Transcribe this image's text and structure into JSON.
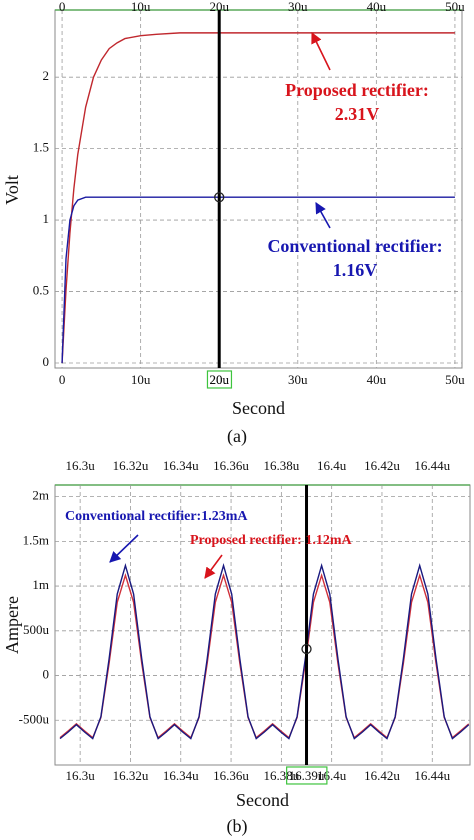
{
  "chart_data": [
    {
      "type": "line",
      "caption": "(a)",
      "xlabel": "Second",
      "ylabel": "Volt",
      "x": [
        0,
        0.5,
        1,
        1.5,
        2,
        3,
        4,
        5,
        6,
        7,
        8,
        10,
        12,
        15,
        20,
        30,
        40,
        50
      ],
      "series": [
        {
          "name": "Proposed rectifier",
          "color": "#c0282e",
          "values": [
            0,
            0.51,
            0.91,
            1.22,
            1.46,
            1.79,
            2.0,
            2.12,
            2.2,
            2.24,
            2.27,
            2.29,
            2.3,
            2.31,
            2.31,
            2.31,
            2.31,
            2.31
          ]
        },
        {
          "name": "Conventional rectifier",
          "color": "#1a1aa0",
          "values": [
            0,
            0.73,
            1.0,
            1.1,
            1.14,
            1.16,
            1.16,
            1.16,
            1.16,
            1.16,
            1.16,
            1.16,
            1.16,
            1.16,
            1.16,
            1.16,
            1.16,
            1.16
          ]
        }
      ],
      "xlim": [
        -0.9,
        50.9
      ],
      "ylim": [
        -0.035,
        2.47
      ],
      "xticks": [
        0,
        {
          "value": 10,
          "label": "10u"
        },
        {
          "value": 20,
          "label": "20u"
        },
        {
          "value": 30,
          "label": "30u"
        },
        {
          "value": 40,
          "label": "40u"
        },
        {
          "value": 50,
          "label": "50u"
        }
      ],
      "yticks": [
        0,
        0.5,
        1,
        1.5,
        2
      ],
      "grid": true,
      "cursor_x": 20,
      "cursor_label": "20u",
      "annotations": [
        {
          "lines": [
            "Proposed rectifier:",
            "2.31V"
          ],
          "color": "#d8141c"
        },
        {
          "lines": [
            "Conventional rectifier:",
            "1.16V"
          ],
          "color": "#1717b0"
        }
      ]
    },
    {
      "type": "line",
      "caption": "(b)",
      "xlabel": "Second",
      "ylabel": "Ampere",
      "x": [
        16.292,
        16.29525,
        16.2985,
        16.30175,
        16.305,
        16.30825,
        16.3115,
        16.31475,
        16.318,
        16.32125,
        16.3245,
        16.32775,
        16.331,
        16.33425,
        16.3375,
        16.34075,
        16.344,
        16.34725,
        16.3505,
        16.35375,
        16.357,
        16.36025,
        16.3635,
        16.36675,
        16.37,
        16.37325,
        16.3765,
        16.37975,
        16.383,
        16.38625,
        16.3895,
        16.39275,
        16.396,
        16.39925,
        16.4025,
        16.40575,
        16.409,
        16.41225,
        16.4155,
        16.41875,
        16.422,
        16.42525,
        16.4285,
        16.43175,
        16.435,
        16.43825,
        16.4415,
        16.44475,
        16.448,
        16.45125,
        16.4545
      ],
      "series": [
        {
          "name": "Proposed rectifier",
          "color": "#d0303a",
          "values": [
            -0.695,
            -0.619,
            -0.54,
            -0.619,
            -0.695,
            -0.47,
            0.135,
            0.819,
            1.12,
            0.819,
            0.135,
            -0.47,
            -0.695,
            -0.619,
            -0.54,
            -0.619,
            -0.695,
            -0.47,
            0.135,
            0.819,
            1.12,
            0.819,
            0.135,
            -0.47,
            -0.695,
            -0.619,
            -0.54,
            -0.619,
            -0.695,
            -0.47,
            0.135,
            0.819,
            1.12,
            0.819,
            0.135,
            -0.47,
            -0.695,
            -0.619,
            -0.54,
            -0.619,
            -0.695,
            -0.47,
            0.135,
            0.819,
            1.12,
            0.819,
            0.135,
            -0.47,
            -0.695,
            -0.619,
            -0.54
          ]
        },
        {
          "name": "Conventional rectifier",
          "color": "#1a1a80",
          "values": [
            -0.705,
            -0.631,
            -0.55,
            -0.631,
            -0.705,
            -0.46,
            0.185,
            0.911,
            1.23,
            0.911,
            0.185,
            -0.46,
            -0.705,
            -0.631,
            -0.55,
            -0.631,
            -0.705,
            -0.46,
            0.185,
            0.911,
            1.23,
            0.911,
            0.185,
            -0.46,
            -0.705,
            -0.631,
            -0.55,
            -0.631,
            -0.705,
            -0.46,
            0.185,
            0.911,
            1.23,
            0.911,
            0.185,
            -0.46,
            -0.705,
            -0.631,
            -0.55,
            -0.631,
            -0.705,
            -0.46,
            0.185,
            0.911,
            1.23,
            0.911,
            0.185,
            -0.46,
            -0.705,
            -0.631,
            -0.55
          ]
        }
      ],
      "xlim": [
        16.29,
        16.455
      ],
      "ylim": [
        -1.0,
        2.13
      ],
      "xticks": [
        {
          "value": 16.3,
          "label": "16.3u"
        },
        {
          "value": 16.32,
          "label": "16.32u"
        },
        {
          "value": 16.34,
          "label": "16.34u"
        },
        {
          "value": 16.36,
          "label": "16.36u"
        },
        {
          "value": 16.38,
          "label": "16.38u"
        },
        {
          "value": 16.4,
          "label": "16.4u"
        },
        {
          "value": 16.42,
          "label": "16.42u"
        },
        {
          "value": 16.44,
          "label": "16.44u"
        }
      ],
      "yticks": [
        {
          "value": -0.5,
          "label": "-500u"
        },
        0,
        {
          "value": 0.5,
          "label": "500u"
        },
        {
          "value": 1,
          "label": "1m"
        },
        {
          "value": 1.5,
          "label": "1.5m"
        },
        {
          "value": 2,
          "label": "2m"
        }
      ],
      "grid": true,
      "cursor_x": 16.39,
      "cursor_label": "16.39u",
      "annotations": [
        {
          "lines": [
            "Conventional rectifier:1.23mA"
          ],
          "color": "#1717b0"
        },
        {
          "lines": [
            "Proposed rectifier: 1.12mA"
          ],
          "color": "#d8141c"
        }
      ]
    }
  ]
}
